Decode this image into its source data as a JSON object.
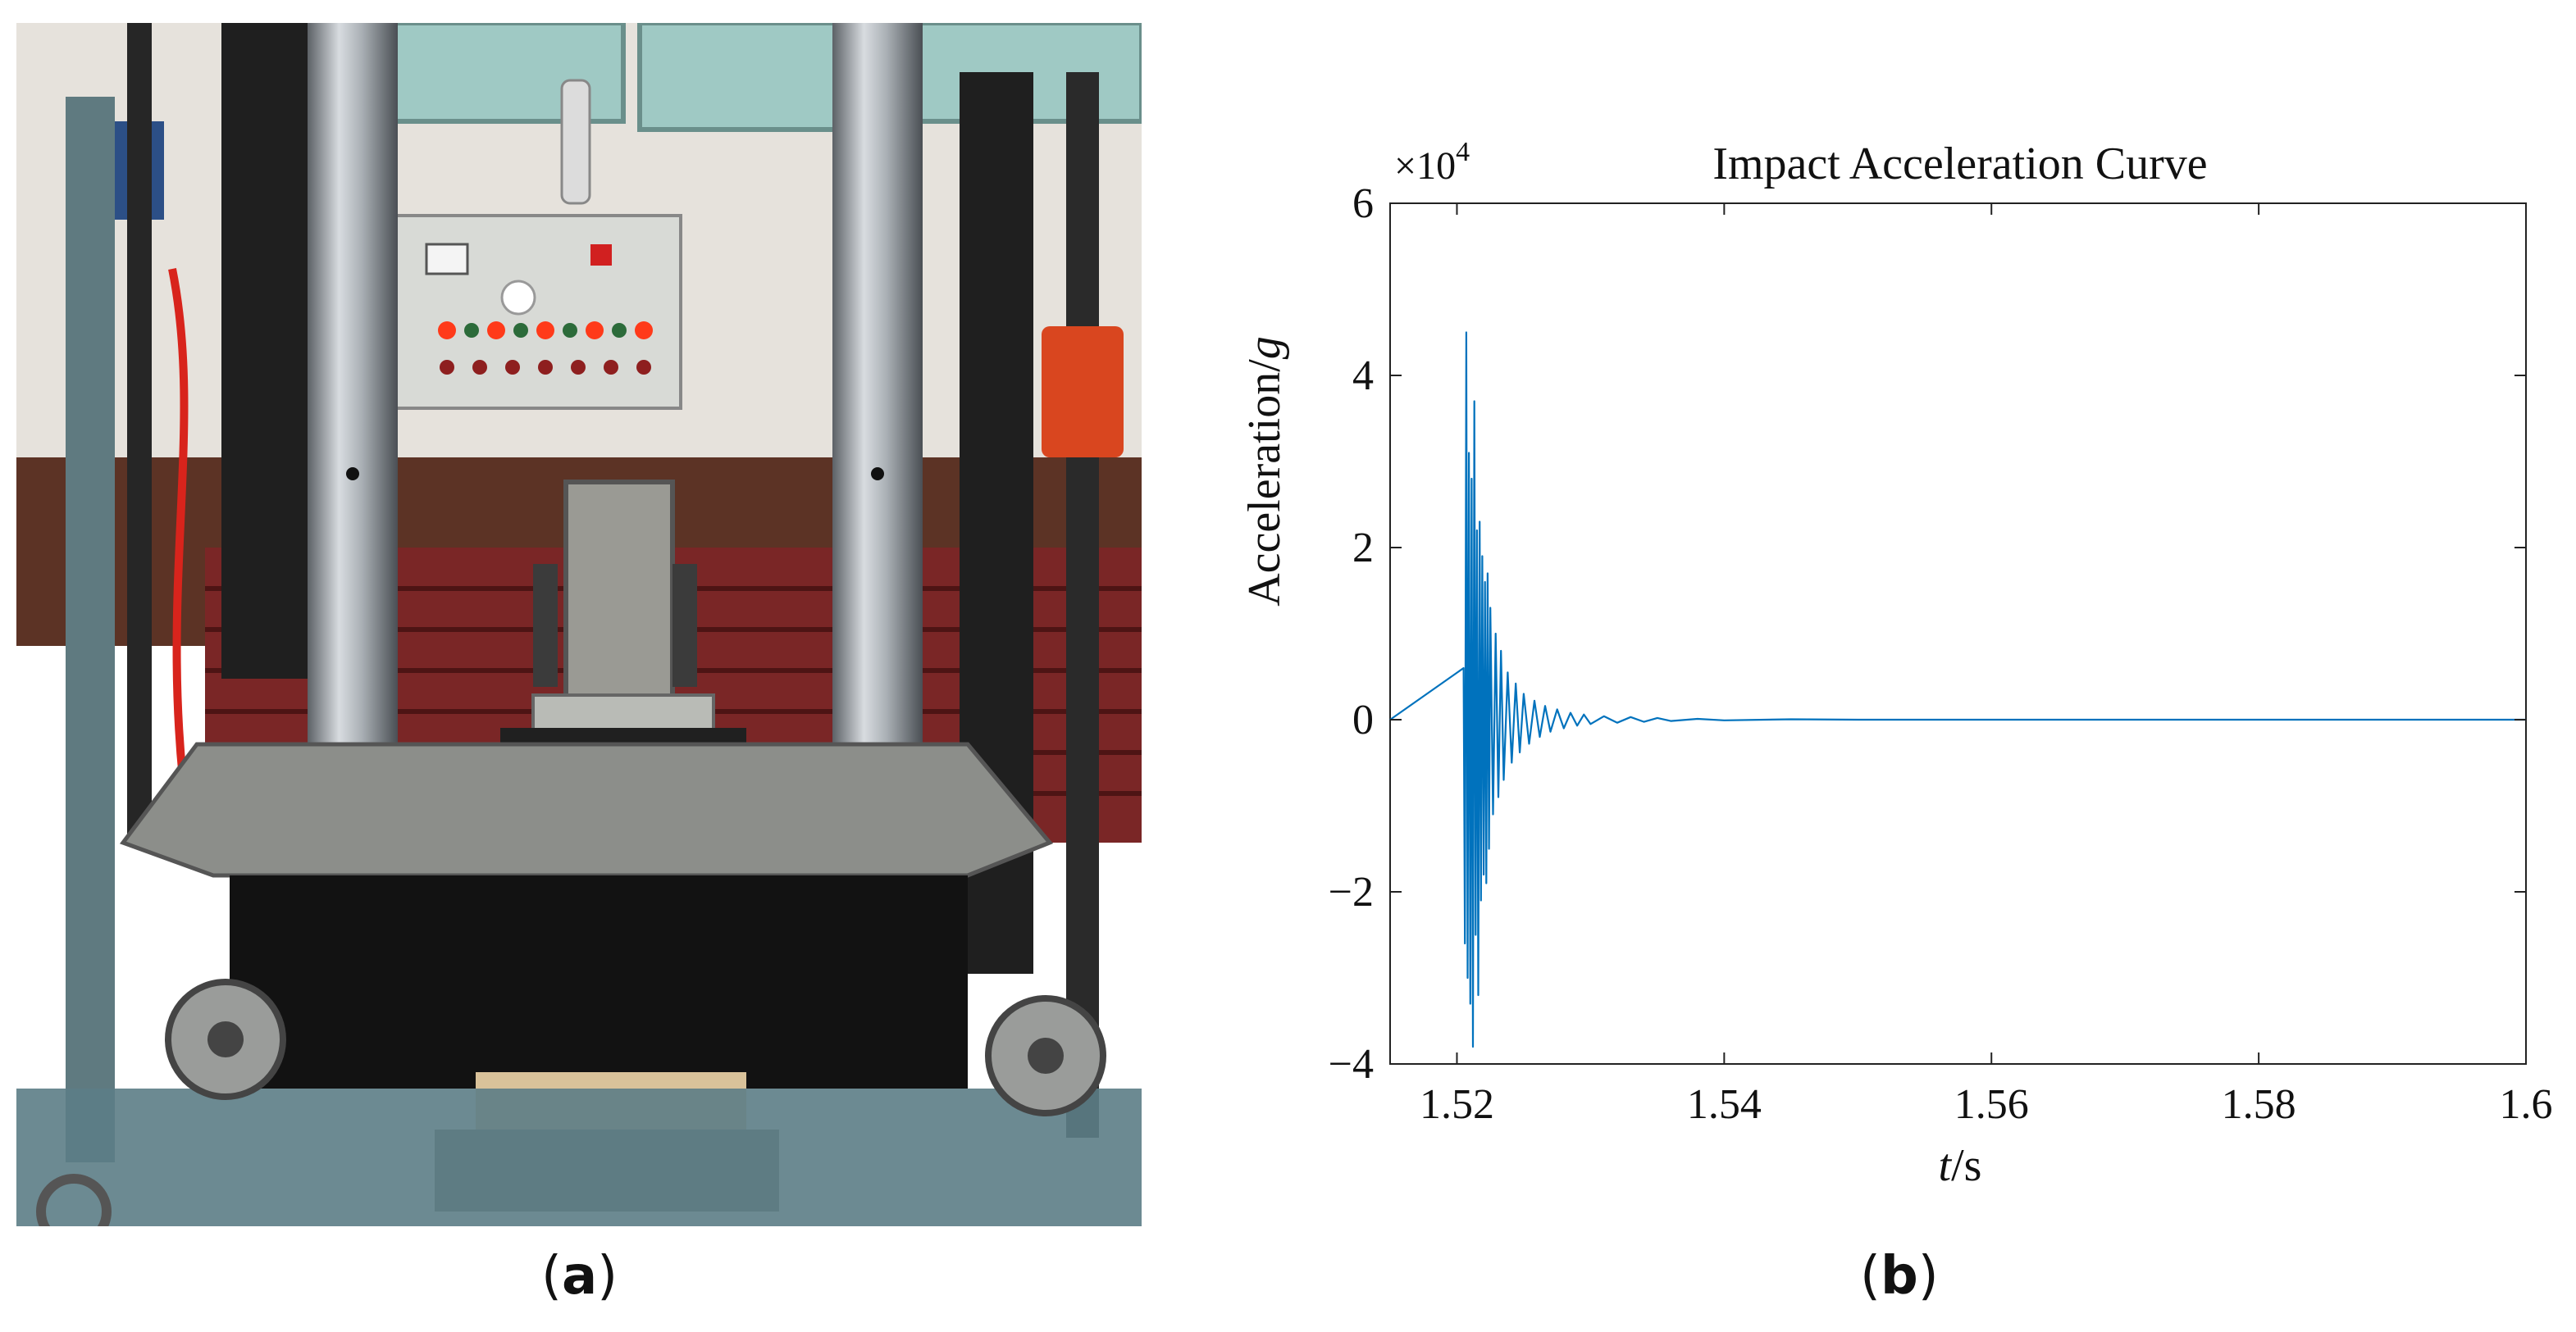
{
  "panels": {
    "a": {
      "label": "a"
    },
    "b": {
      "label": "b"
    }
  },
  "chart_data": {
    "type": "line",
    "title": "Impact Acceleration Curve",
    "xlabel_var": "t",
    "xlabel_unit": "/s",
    "ylabel_text": "Acceleration/",
    "ylabel_var": "g",
    "y_multiplier_base": "×10",
    "y_multiplier_exp": "4",
    "xlim": [
      1.515,
      1.6
    ],
    "ylim": [
      -4,
      6
    ],
    "x_ticks": [
      1.52,
      1.54,
      1.56,
      1.58,
      1.6
    ],
    "x_tick_labels": [
      "1.52",
      "1.54",
      "1.56",
      "1.58",
      "1.6"
    ],
    "y_ticks": [
      -4,
      -2,
      0,
      2,
      4,
      6
    ],
    "y_tick_labels": [
      "−4",
      "−2",
      "0",
      "2",
      "4",
      "6"
    ],
    "grid": false,
    "series": [
      {
        "color": "#0072BD",
        "x": [
          1.515,
          1.5205,
          1.5206,
          1.5207,
          1.5208,
          1.5209,
          1.521,
          1.5211,
          1.5212,
          1.5213,
          1.5214,
          1.5215,
          1.5216,
          1.5217,
          1.5218,
          1.5219,
          1.522,
          1.5221,
          1.5222,
          1.5223,
          1.5224,
          1.5225,
          1.5227,
          1.5229,
          1.5231,
          1.5233,
          1.5235,
          1.5238,
          1.5241,
          1.5244,
          1.5247,
          1.525,
          1.5254,
          1.5258,
          1.5262,
          1.5266,
          1.527,
          1.5275,
          1.528,
          1.5285,
          1.529,
          1.5295,
          1.53,
          1.531,
          1.532,
          1.533,
          1.534,
          1.535,
          1.536,
          1.538,
          1.54,
          1.545,
          1.55,
          1.6
        ],
        "y": [
          0,
          0.6,
          -2.6,
          4.5,
          -3.0,
          3.1,
          -3.3,
          2.8,
          -3.8,
          3.7,
          -2.5,
          2.2,
          -3.2,
          2.3,
          -2.1,
          1.9,
          -1.8,
          1.6,
          -1.9,
          1.7,
          -1.5,
          1.3,
          -1.1,
          1.0,
          -0.9,
          0.8,
          -0.7,
          0.55,
          -0.5,
          0.42,
          -0.38,
          0.3,
          -0.28,
          0.22,
          -0.2,
          0.16,
          -0.14,
          0.12,
          -0.1,
          0.08,
          -0.07,
          0.06,
          -0.05,
          0.04,
          -0.035,
          0.03,
          -0.025,
          0.02,
          -0.015,
          0.01,
          -0.008,
          0.005,
          0,
          0
        ]
      }
    ]
  }
}
